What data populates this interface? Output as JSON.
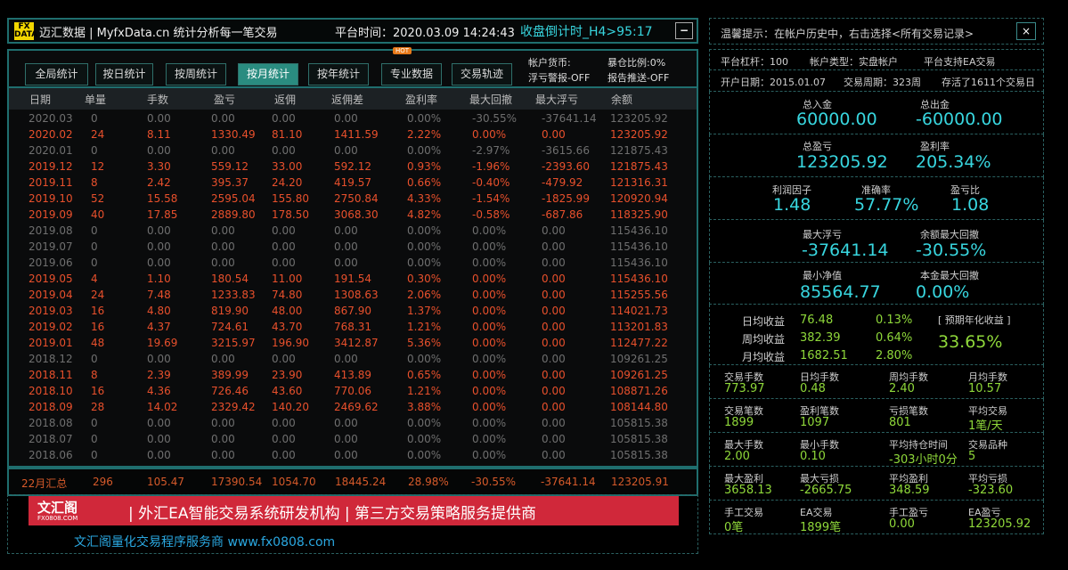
{
  "title_bar": {
    "logo_text": "FX DATA",
    "app_name": "迈汇数据 | MyfxData.cn  统计分析每一笔交易",
    "platform_time": "平台时间：2020.03.09 14:24:43",
    "countdown": "收盘倒计时_H4>95:17",
    "minimize_label": "−"
  },
  "toolbar": {
    "buttons": [
      "全局统计",
      "按日统计",
      "按周统计",
      "按月统计",
      "按年统计",
      "专业数据",
      "交易轨迹"
    ],
    "active_index": 3,
    "hot_badge": "HOT",
    "account_currency": "帐户货币:",
    "float_alert": "浮亏警报-OFF",
    "exposure_ratio": "暴仓比例:0%",
    "report_push": "报告推送-OFF"
  },
  "table": {
    "columns": [
      "日期",
      "单量",
      "手数",
      "盈亏",
      "返佣",
      "返佣差",
      "盈利率",
      "最大回撤",
      "最大浮亏",
      "余额"
    ],
    "rows": [
      [
        "2020.03",
        "0",
        "0.00",
        "0.00",
        "0.00",
        "0.00",
        "0.00%",
        "-30.55%",
        "-37641.14",
        "123205.92"
      ],
      [
        "2020.02",
        "24",
        "8.11",
        "1330.49",
        "81.10",
        "1411.59",
        "2.22%",
        "0.00%",
        "0.00",
        "123205.92"
      ],
      [
        "2020.01",
        "0",
        "0.00",
        "0.00",
        "0.00",
        "0.00",
        "0.00%",
        "-2.97%",
        "-3615.66",
        "121875.43"
      ],
      [
        "2019.12",
        "12",
        "3.30",
        "559.12",
        "33.00",
        "592.12",
        "0.93%",
        "-1.96%",
        "-2393.60",
        "121875.43"
      ],
      [
        "2019.11",
        "8",
        "2.42",
        "395.37",
        "24.20",
        "419.57",
        "0.66%",
        "-0.40%",
        "-479.92",
        "121316.31"
      ],
      [
        "2019.10",
        "52",
        "15.58",
        "2595.04",
        "155.80",
        "2750.84",
        "4.33%",
        "-1.54%",
        "-1825.99",
        "120920.94"
      ],
      [
        "2019.09",
        "40",
        "17.85",
        "2889.80",
        "178.50",
        "3068.30",
        "4.82%",
        "-0.58%",
        "-687.86",
        "118325.90"
      ],
      [
        "2019.08",
        "0",
        "0.00",
        "0.00",
        "0.00",
        "0.00",
        "0.00%",
        "0.00%",
        "0.00",
        "115436.10"
      ],
      [
        "2019.07",
        "0",
        "0.00",
        "0.00",
        "0.00",
        "0.00",
        "0.00%",
        "0.00%",
        "0.00",
        "115436.10"
      ],
      [
        "2019.06",
        "0",
        "0.00",
        "0.00",
        "0.00",
        "0.00",
        "0.00%",
        "0.00%",
        "0.00",
        "115436.10"
      ],
      [
        "2019.05",
        "4",
        "1.10",
        "180.54",
        "11.00",
        "191.54",
        "0.30%",
        "0.00%",
        "0.00",
        "115436.10"
      ],
      [
        "2019.04",
        "24",
        "7.48",
        "1233.83",
        "74.80",
        "1308.63",
        "2.06%",
        "0.00%",
        "0.00",
        "115255.56"
      ],
      [
        "2019.03",
        "16",
        "4.80",
        "819.90",
        "48.00",
        "867.90",
        "1.37%",
        "0.00%",
        "0.00",
        "114021.73"
      ],
      [
        "2019.02",
        "16",
        "4.37",
        "724.61",
        "43.70",
        "768.31",
        "1.21%",
        "0.00%",
        "0.00",
        "113201.83"
      ],
      [
        "2019.01",
        "48",
        "19.69",
        "3215.97",
        "196.90",
        "3412.87",
        "5.36%",
        "0.00%",
        "0.00",
        "112477.22"
      ],
      [
        "2018.12",
        "0",
        "0.00",
        "0.00",
        "0.00",
        "0.00",
        "0.00%",
        "0.00%",
        "0.00",
        "109261.25"
      ],
      [
        "2018.11",
        "8",
        "2.39",
        "389.99",
        "23.90",
        "413.89",
        "0.65%",
        "0.00%",
        "0.00",
        "109261.25"
      ],
      [
        "2018.10",
        "16",
        "4.36",
        "726.46",
        "43.60",
        "770.06",
        "1.21%",
        "0.00%",
        "0.00",
        "108871.26"
      ],
      [
        "2018.09",
        "28",
        "14.02",
        "2329.42",
        "140.20",
        "2469.62",
        "3.88%",
        "0.00%",
        "0.00",
        "108144.80"
      ],
      [
        "2018.08",
        "0",
        "0.00",
        "0.00",
        "0.00",
        "0.00",
        "0.00%",
        "0.00%",
        "0.00",
        "105815.38"
      ],
      [
        "2018.07",
        "0",
        "0.00",
        "0.00",
        "0.00",
        "0.00",
        "0.00%",
        "0.00%",
        "0.00",
        "105815.38"
      ],
      [
        "2018.06",
        "0",
        "0.00",
        "0.00",
        "0.00",
        "0.00",
        "0.00%",
        "0.00%",
        "0.00",
        "105815.38"
      ]
    ],
    "summary": [
      "22月汇总",
      "296",
      "105.47",
      "17390.54",
      "1054.70",
      "18445.24",
      "28.98%",
      "-30.55%",
      "-37641.14",
      "123205.91"
    ]
  },
  "banner": {
    "logo_text": "文汇阁 FX0808.COM",
    "text": "| 外汇EA智能交易系统研发机构  |  第三方交易策略服务提供商"
  },
  "footer": {
    "link": "文汇阁量化交易程序服务商 www.fx0808.com"
  },
  "colors": {
    "profit_row": "#e8502c",
    "zero_row": "#6f6f6f",
    "accent_cyan": "#38d6df",
    "accent_green": "#8fd83a",
    "border_teal": "#1f6e6e"
  },
  "right_panel": {
    "tip": "温馨提示：在帐户历史中，右击选择<所有交易记录>",
    "close_label": "×",
    "info1": [
      "平台杠杆：100",
      "帐户类型：实盘帐户",
      "平台支持EA交易"
    ],
    "info2": [
      "开户日期：2015.01.07",
      "交易周期：323周",
      "存活了1611个交易日"
    ],
    "deposit": {
      "label": "总入金",
      "value": "60000.00"
    },
    "withdraw": {
      "label": "总出金",
      "value": "-60000.00"
    },
    "total_pl": {
      "label": "总盈亏",
      "value": "123205.92"
    },
    "profit_rate": {
      "label": "盈利率",
      "value": "205.34%"
    },
    "profit_factor": {
      "label": "利润因子",
      "value": "1.48"
    },
    "accuracy": {
      "label": "准确率",
      "value": "57.77%"
    },
    "pl_ratio": {
      "label": "盈亏比",
      "value": "1.08"
    },
    "max_float_loss": {
      "label": "最大浮亏",
      "value": "-37641.14"
    },
    "balance_max_dd": {
      "label": "余额最大回撤",
      "value": "-30.55%"
    },
    "min_equity": {
      "label": "最小净值",
      "value": "85564.77"
    },
    "principal_max_dd": {
      "label": "本金最大回撤",
      "value": "0.00%"
    },
    "returns": [
      {
        "label": "日均收益",
        "value": "76.48",
        "pct": "0.13%"
      },
      {
        "label": "周均收益",
        "value": "382.39",
        "pct": "0.64%"
      },
      {
        "label": "月均收益",
        "value": "1682.51",
        "pct": "2.80%"
      }
    ],
    "annual_label": "[ 预期年化收益 ]",
    "annual_value": "33.65%",
    "grid": [
      [
        {
          "label": "交易手数",
          "value": "773.97"
        },
        {
          "label": "日均手数",
          "value": "0.48"
        },
        {
          "label": "周均手数",
          "value": "2.40"
        },
        {
          "label": "月均手数",
          "value": "10.57"
        }
      ],
      [
        {
          "label": "交易笔数",
          "value": "1899"
        },
        {
          "label": "盈利笔数",
          "value": "1097"
        },
        {
          "label": "亏损笔数",
          "value": "801"
        },
        {
          "label": "平均交易",
          "value": "1笔/天"
        }
      ],
      [
        {
          "label": "最大手数",
          "value": "2.00"
        },
        {
          "label": "最小手数",
          "value": "0.10"
        },
        {
          "label": "平均持仓时间",
          "value": "-303小时0分"
        },
        {
          "label": "交易品种",
          "value": "5"
        }
      ],
      [
        {
          "label": "最大盈利",
          "value": "3658.13"
        },
        {
          "label": "最大亏损",
          "value": "-2665.75"
        },
        {
          "label": "平均盈利",
          "value": "348.59"
        },
        {
          "label": "平均亏损",
          "value": "-323.60"
        }
      ],
      [
        {
          "label": "手工交易",
          "value": "0笔"
        },
        {
          "label": "EA交易",
          "value": "1899笔"
        },
        {
          "label": "手工盈亏",
          "value": "0.00"
        },
        {
          "label": "EA盈亏",
          "value": "123205.92"
        }
      ]
    ]
  }
}
